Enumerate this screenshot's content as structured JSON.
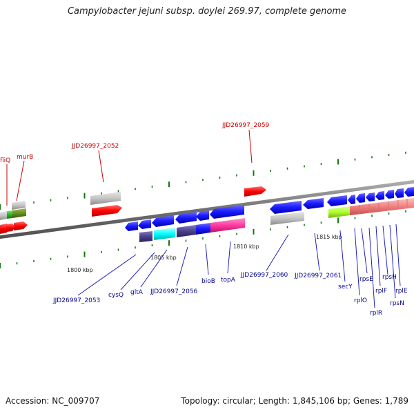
{
  "title": "Campylobacter jejuni subsp. doylei 269.97, complete genome",
  "footer": {
    "accession": "Accession: NC_009707",
    "summary": "Topology: circular; Length: 1,845,106 bp; Genes: 1,789"
  },
  "scale": {
    "labels": [
      "1800 kbp",
      "1805 kbp",
      "1810 kbp",
      "1815 kbp"
    ]
  },
  "colors": {
    "label_red": "#cc0000",
    "label_blue": "#00008b",
    "gene_blue": "#1a1aff",
    "gene_red": "#ff0000",
    "gene_grey": "#c0c0c0",
    "gene_olive": "#6b8e23",
    "gene_green": "#22bb22",
    "gene_cyan": "#00ffff",
    "gene_navy": "#4b3f8c",
    "gene_magenta": "#ff3ba0",
    "gene_lime": "#adff2f",
    "gene_pink": "#f08080",
    "backbone": "#808080",
    "tick_green": "#117711"
  },
  "labels_top": [
    "fliQ",
    "murB",
    "JJD26997_2052",
    "JJD26997_2059"
  ],
  "labels_bottom": [
    "JJD26997_2053",
    "cysQ",
    "gltA",
    "JJD26997_2056",
    "bioB",
    "topA",
    "JJD26997_2060",
    "JJD26997_2061",
    "secY",
    "rplO",
    "rpsE",
    "rplR",
    "rplF",
    "rpsH",
    "rpsN",
    "rplE"
  ]
}
